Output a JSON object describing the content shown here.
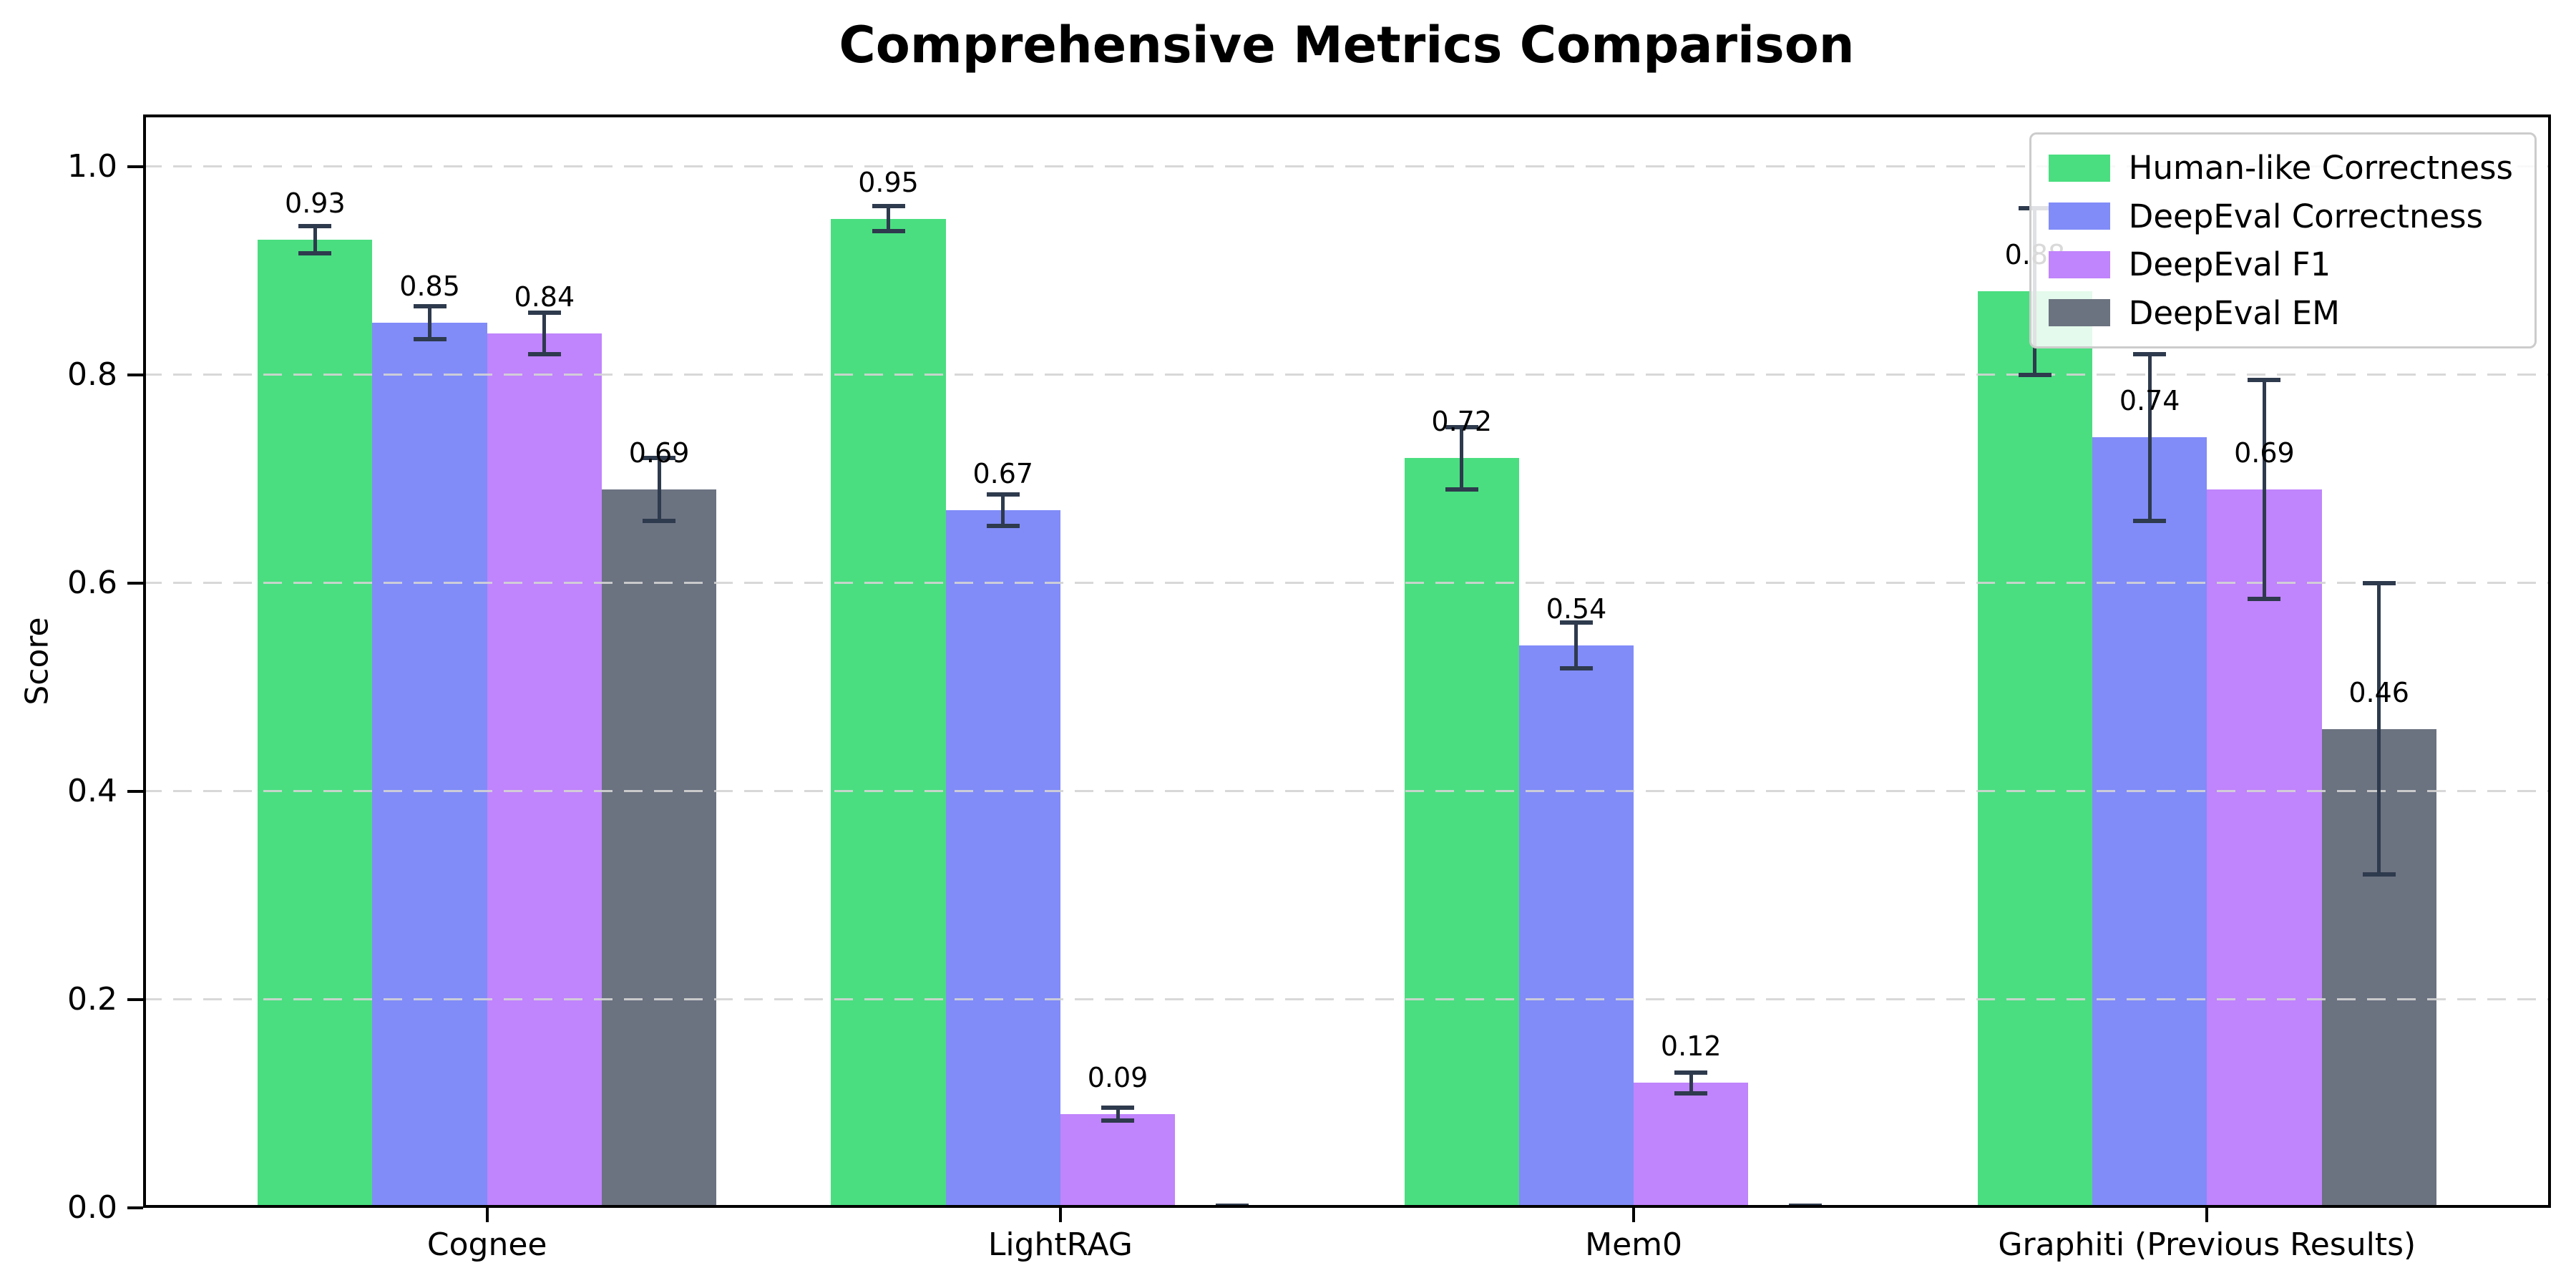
{
  "chart_data": {
    "type": "bar",
    "title": "Comprehensive Metrics Comparison",
    "xlabel": "",
    "ylabel": "Score",
    "ylim": [
      0,
      1.05
    ],
    "yticks": [
      0.0,
      0.2,
      0.4,
      0.6,
      0.8,
      1.0
    ],
    "ytick_labels": [
      "0.0",
      "0.2",
      "0.4",
      "0.6",
      "0.8",
      "1.0"
    ],
    "grid": {
      "axis": "y",
      "style": "dashed",
      "color": "#d4d4d4",
      "drawn_over_bars": true
    },
    "legend_position": "upper right",
    "error_bar_color": "#2e3a4d",
    "categories": [
      "Cognee",
      "LightRAG",
      "Mem0",
      "Graphiti (Previous Results)"
    ],
    "series": [
      {
        "name": "Human-like Correctness",
        "color": "#4ade80",
        "values": [
          0.93,
          0.95,
          0.72,
          0.88
        ],
        "errors": [
          0.013,
          0.012,
          0.03,
          0.08
        ],
        "labels": [
          "0.93",
          "0.95",
          "0.72",
          "0.88"
        ]
      },
      {
        "name": "DeepEval Correctness",
        "color": "#818cf8",
        "values": [
          0.85,
          0.67,
          0.54,
          0.74
        ],
        "errors": [
          0.016,
          0.015,
          0.022,
          0.08
        ],
        "labels": [
          "0.85",
          "0.67",
          "0.54",
          "0.74"
        ]
      },
      {
        "name": "DeepEval F1",
        "color": "#c084fc",
        "values": [
          0.84,
          0.09,
          0.12,
          0.69
        ],
        "errors": [
          0.02,
          0.006,
          0.01,
          0.105
        ],
        "labels": [
          "0.84",
          "0.09",
          "0.12",
          "0.69"
        ]
      },
      {
        "name": "DeepEval EM",
        "color": "#6b7280",
        "values": [
          0.69,
          0.0,
          0.0,
          0.46
        ],
        "errors": [
          0.03,
          0.002,
          0.002,
          0.14
        ],
        "labels": [
          "0.69",
          null,
          null,
          "0.46"
        ]
      }
    ]
  }
}
